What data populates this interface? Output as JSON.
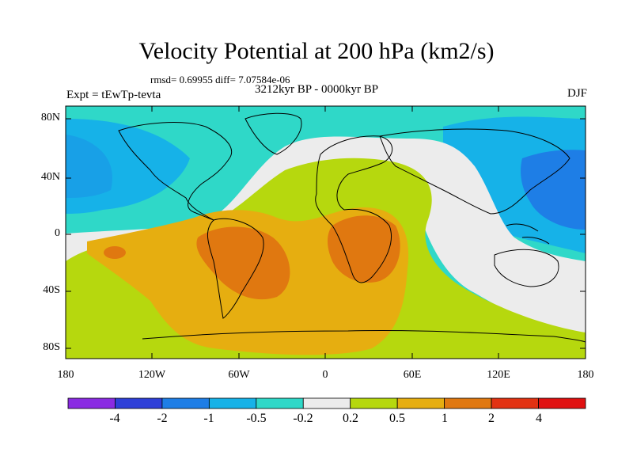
{
  "title": "Velocity Potential at 200 hPa (km2/s)",
  "stats": "rmsd= 0.69955 diff= 7.07584e-06",
  "experiment": "Expt = tEwTp-tevta",
  "period": "3212kyr BP - 0000kyr BP",
  "season": "DJF",
  "lat_ticks": [
    "80N",
    "40N",
    "0",
    "40S",
    "80S"
  ],
  "lon_ticks": [
    "180",
    "120W",
    "60W",
    "0",
    "60E",
    "120E",
    "180"
  ],
  "colorbar": {
    "labels": [
      "-4",
      "-2",
      "-1",
      "-0.5",
      "-0.2",
      "0.2",
      "0.5",
      "1",
      "2",
      "4"
    ],
    "colors": [
      "#8a2be2",
      "#2e3fd8",
      "#1e7ee6",
      "#16b2e8",
      "#2fd8c8",
      "#ececec",
      "#b6d80e",
      "#e6ae10",
      "#e07810",
      "#e23212"
    ]
  }
}
